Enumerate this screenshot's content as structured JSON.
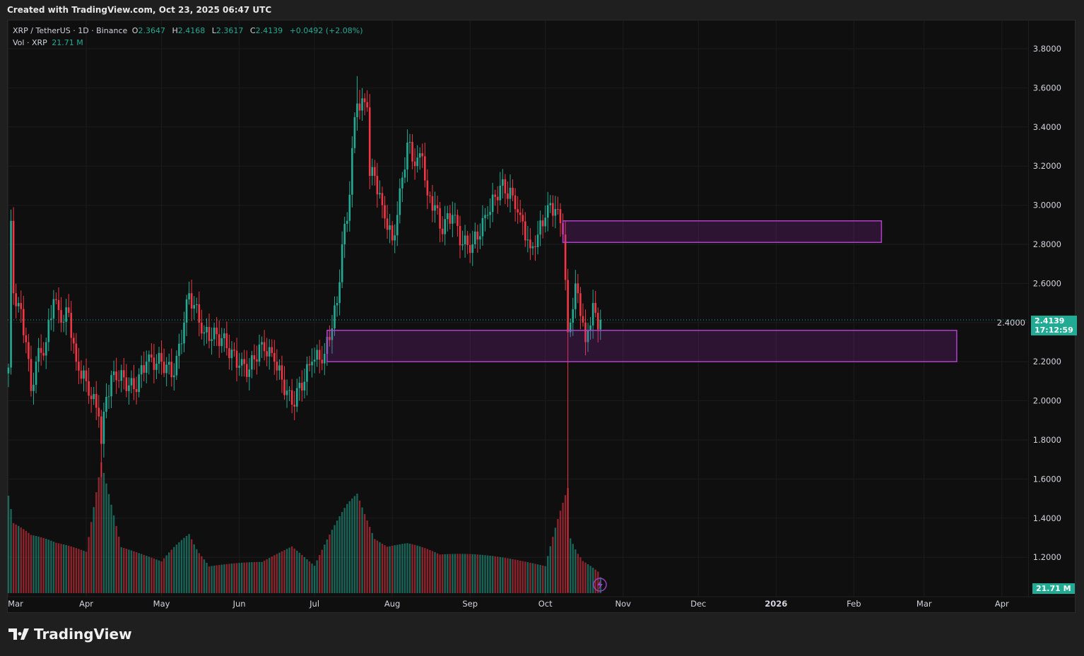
{
  "header": {
    "created": "Created with TradingView.com, Oct 23, 2025 06:47 UTC"
  },
  "legend": {
    "symbol": "XRP / TetherUS · 1D · Binance",
    "open_label": "O",
    "open": "2.3647",
    "high_label": "H",
    "high": "2.4168",
    "low_label": "L",
    "low": "2.3617",
    "close_label": "C",
    "close": "2.4139",
    "change": "+0.0492 (+2.08%)",
    "vol_label": "Vol · XRP",
    "vol": "21.71 M"
  },
  "price_badge": {
    "price": "2.4139",
    "countdown": "17:12:59"
  },
  "volume_badge": "21.71 M",
  "footer": {
    "brand": "TradingView"
  },
  "colors": {
    "up": "#22ab94",
    "down": "#f23645",
    "zone": "#b33fc9",
    "bg": "#0f0f0f"
  },
  "chart_data": {
    "type": "candlestick",
    "title": "XRP / TetherUS · 1D · Binance",
    "ylim": [
      1.1,
      3.95
    ],
    "y_ticks": [
      "3.8000",
      "3.6000",
      "3.4000",
      "3.2000",
      "3.0000",
      "2.8000",
      "2.6000",
      "2.4000",
      "2.2000",
      "2.0000",
      "1.8000",
      "1.6000",
      "1.4000",
      "1.2000"
    ],
    "x_ticks": [
      {
        "label": "Mar",
        "date": "2025-03-01"
      },
      {
        "label": "Apr",
        "date": "2025-04-01"
      },
      {
        "label": "May",
        "date": "2025-05-01"
      },
      {
        "label": "Jun",
        "date": "2025-06-01"
      },
      {
        "label": "Jul",
        "date": "2025-07-01"
      },
      {
        "label": "Aug",
        "date": "2025-08-01"
      },
      {
        "label": "Sep",
        "date": "2025-09-01"
      },
      {
        "label": "Oct",
        "date": "2025-10-01"
      },
      {
        "label": "Nov",
        "date": "2025-11-01"
      },
      {
        "label": "Dec",
        "date": "2025-12-01"
      },
      {
        "label": "2026",
        "date": "2026-01-01"
      },
      {
        "label": "Feb",
        "date": "2026-02-01"
      },
      {
        "label": "Mar",
        "date": "2026-03-01"
      },
      {
        "label": "Apr",
        "date": "2026-04-01"
      }
    ],
    "close_anchors": [
      [
        "2025-03-01",
        2.17
      ],
      [
        "2025-03-02",
        2.92
      ],
      [
        "2025-03-03",
        2.55
      ],
      [
        "2025-03-05",
        2.5
      ],
      [
        "2025-03-08",
        2.3
      ],
      [
        "2025-03-10",
        2.05
      ],
      [
        "2025-03-12",
        2.2
      ],
      [
        "2025-03-16",
        2.3
      ],
      [
        "2025-03-19",
        2.52
      ],
      [
        "2025-03-22",
        2.4
      ],
      [
        "2025-03-25",
        2.45
      ],
      [
        "2025-03-28",
        2.2
      ],
      [
        "2025-04-01",
        2.1
      ],
      [
        "2025-04-06",
        1.92
      ],
      [
        "2025-04-07",
        1.78
      ],
      [
        "2025-04-09",
        2.02
      ],
      [
        "2025-04-12",
        2.15
      ],
      [
        "2025-04-20",
        2.06
      ],
      [
        "2025-04-25",
        2.2
      ],
      [
        "2025-05-01",
        2.2
      ],
      [
        "2025-05-06",
        2.13
      ],
      [
        "2025-05-10",
        2.4
      ],
      [
        "2025-05-12",
        2.55
      ],
      [
        "2025-05-18",
        2.35
      ],
      [
        "2025-05-25",
        2.32
      ],
      [
        "2025-06-01",
        2.18
      ],
      [
        "2025-06-05",
        2.16
      ],
      [
        "2025-06-10",
        2.3
      ],
      [
        "2025-06-15",
        2.2
      ],
      [
        "2025-06-22",
        1.98
      ],
      [
        "2025-06-30",
        2.2
      ],
      [
        "2025-07-05",
        2.24
      ],
      [
        "2025-07-10",
        2.5
      ],
      [
        "2025-07-12",
        2.8
      ],
      [
        "2025-07-14",
        2.92
      ],
      [
        "2025-07-17",
        3.45
      ],
      [
        "2025-07-18",
        3.52
      ],
      [
        "2025-07-22",
        3.5
      ],
      [
        "2025-07-23",
        3.15
      ],
      [
        "2025-07-25",
        3.15
      ],
      [
        "2025-07-28",
        3.0
      ],
      [
        "2025-08-01",
        2.82
      ],
      [
        "2025-08-03",
        2.95
      ],
      [
        "2025-08-07",
        3.32
      ],
      [
        "2025-08-10",
        3.2
      ],
      [
        "2025-08-13",
        3.25
      ],
      [
        "2025-08-15",
        3.05
      ],
      [
        "2025-08-18",
        3.0
      ],
      [
        "2025-08-20",
        2.88
      ],
      [
        "2025-08-25",
        2.95
      ],
      [
        "2025-08-29",
        2.8
      ],
      [
        "2025-09-02",
        2.8
      ],
      [
        "2025-09-08",
        2.95
      ],
      [
        "2025-09-13",
        3.1
      ],
      [
        "2025-09-18",
        3.05
      ],
      [
        "2025-09-21",
        2.95
      ],
      [
        "2025-09-25",
        2.78
      ],
      [
        "2025-09-28",
        2.85
      ],
      [
        "2025-10-02",
        3.0
      ],
      [
        "2025-10-06",
        2.98
      ],
      [
        "2025-10-08",
        2.85
      ],
      [
        "2025-10-10",
        2.35
      ],
      [
        "2025-10-11",
        2.4
      ],
      [
        "2025-10-13",
        2.6
      ],
      [
        "2025-10-14",
        2.55
      ],
      [
        "2025-10-16",
        2.4
      ],
      [
        "2025-10-17",
        2.3
      ],
      [
        "2025-10-18",
        2.36
      ],
      [
        "2025-10-20",
        2.5
      ],
      [
        "2025-10-21",
        2.45
      ],
      [
        "2025-10-22",
        2.3647
      ],
      [
        "2025-10-23",
        2.4139
      ]
    ],
    "notable_wicks": [
      [
        "2025-04-07",
        1.61
      ],
      [
        "2025-10-10",
        1.02
      ],
      [
        "2025-07-18",
        3.66
      ]
    ],
    "volume_anchors_millions": [
      [
        "2025-03-01",
        160
      ],
      [
        "2025-03-03",
        110
      ],
      [
        "2025-03-10",
        80
      ],
      [
        "2025-03-20",
        60
      ],
      [
        "2025-04-01",
        45
      ],
      [
        "2025-04-07",
        140
      ],
      [
        "2025-04-15",
        50
      ],
      [
        "2025-05-01",
        40
      ],
      [
        "2025-05-12",
        90
      ],
      [
        "2025-05-20",
        40
      ],
      [
        "2025-06-10",
        35
      ],
      [
        "2025-06-22",
        50
      ],
      [
        "2025-07-01",
        30
      ],
      [
        "2025-07-14",
        110
      ],
      [
        "2025-07-18",
        130
      ],
      [
        "2025-07-25",
        80
      ],
      [
        "2025-08-07",
        70
      ],
      [
        "2025-08-20",
        45
      ],
      [
        "2025-09-10",
        40
      ],
      [
        "2025-10-01",
        35
      ],
      [
        "2025-10-10",
        160
      ],
      [
        "2025-10-11",
        85
      ],
      [
        "2025-10-16",
        50
      ],
      [
        "2025-10-22",
        30
      ],
      [
        "2025-10-23",
        21.71
      ]
    ],
    "zones": [
      {
        "from": "2025-10-08",
        "to": "2026-02-12",
        "top": 2.92,
        "bottom": 2.81
      },
      {
        "from": "2025-07-06",
        "to": "2026-03-14",
        "top": 2.36,
        "bottom": 2.2
      }
    ],
    "last_price": 2.4139
  }
}
